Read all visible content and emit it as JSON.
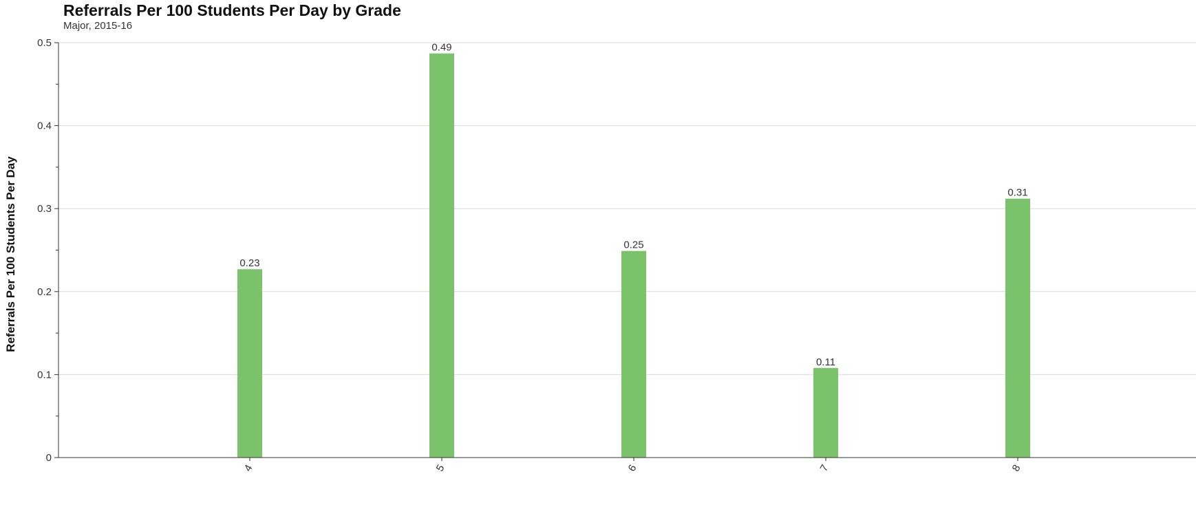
{
  "chart_data": {
    "type": "bar",
    "title": "Referrals Per 100 Students Per Day by Grade",
    "subtitle": "Major, 2015-16",
    "xlabel": "",
    "ylabel": "Referrals Per 100 Students Per Day",
    "categories": [
      "4",
      "5",
      "6",
      "7",
      "8"
    ],
    "values": [
      0.227,
      0.487,
      0.249,
      0.108,
      0.312
    ],
    "data_labels": [
      "0.23",
      "0.49",
      "0.25",
      "0.11",
      "0.31"
    ],
    "ylim": [
      0,
      0.5
    ],
    "yticks": [
      "0",
      "0.1",
      "0.2",
      "0.3",
      "0.4",
      "0.5"
    ],
    "grid": true,
    "bar_color": "#7bc36a"
  }
}
